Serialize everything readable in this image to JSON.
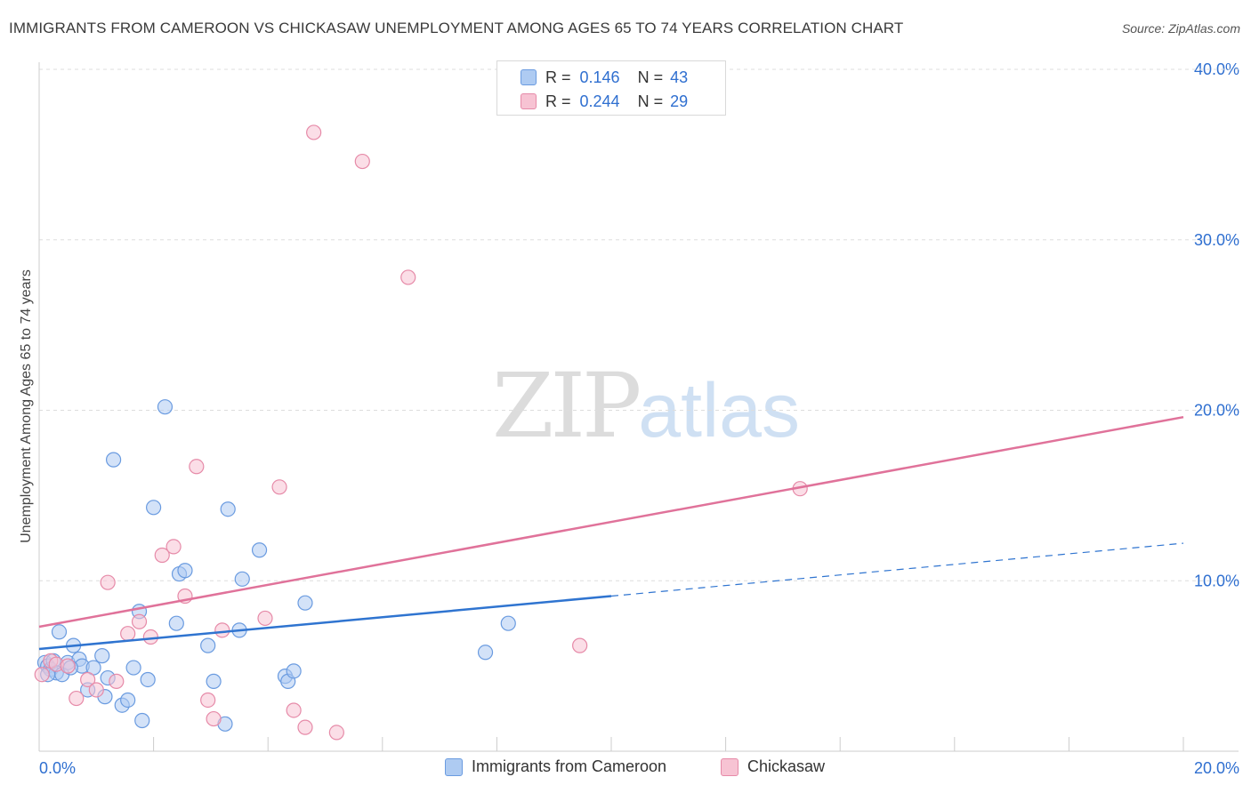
{
  "title": "IMMIGRANTS FROM CAMEROON VS CHICKASAW UNEMPLOYMENT AMONG AGES 65 TO 74 YEARS CORRELATION CHART",
  "source": "Source: ZipAtlas.com",
  "watermark": {
    "zip": "ZIP",
    "atlas": "atlas"
  },
  "legend_top": [
    {
      "r_label": "R =",
      "r_value": "0.146",
      "n_label": "N =",
      "n_value": "43"
    },
    {
      "r_label": "R =",
      "r_value": "0.244",
      "n_label": "N =",
      "n_value": "29"
    }
  ],
  "legend_bottom": [
    "Immigrants from Cameroon",
    "Chickasaw"
  ],
  "colors": {
    "blue_fill": "#aecbf2",
    "blue_stroke": "#6a9be0",
    "blue_line": "#2f74d0",
    "pink_fill": "#f7c3d3",
    "pink_stroke": "#e68aa8",
    "pink_line": "#e0729a",
    "axis_text": "#2f6fd0",
    "grid": "#dddddd"
  },
  "chart_data": {
    "type": "scatter",
    "xlabel": "",
    "ylabel": "Unemployment Among Ages 65 to 74 years",
    "xlim": [
      0,
      20
    ],
    "ylim": [
      0,
      40
    ],
    "x_tick_labels": [
      "0.0%",
      "20.0%"
    ],
    "y_ticks": [
      10,
      20,
      30,
      40
    ],
    "y_tick_labels": [
      "10.0%",
      "20.0%",
      "30.0%",
      "40.0%"
    ],
    "series": [
      {
        "name": "Immigrants from Cameroon",
        "R": 0.146,
        "N": 43,
        "trend": {
          "x0": 0,
          "y0": 6.0,
          "x1": 20,
          "y1": 12.2,
          "solid_until_x": 10
        },
        "points": [
          [
            0.1,
            5.2
          ],
          [
            0.15,
            5.0
          ],
          [
            0.2,
            4.8
          ],
          [
            0.25,
            5.3
          ],
          [
            0.3,
            4.6
          ],
          [
            0.35,
            7.0
          ],
          [
            0.4,
            4.5
          ],
          [
            0.5,
            5.2
          ],
          [
            0.6,
            6.2
          ],
          [
            0.7,
            5.4
          ],
          [
            0.75,
            5.0
          ],
          [
            0.85,
            3.6
          ],
          [
            0.95,
            4.9
          ],
          [
            1.1,
            5.6
          ],
          [
            1.15,
            3.2
          ],
          [
            1.2,
            4.3
          ],
          [
            1.3,
            17.1
          ],
          [
            1.45,
            2.7
          ],
          [
            1.55,
            3.0
          ],
          [
            1.65,
            4.9
          ],
          [
            1.75,
            8.2
          ],
          [
            1.8,
            1.8
          ],
          [
            1.9,
            4.2
          ],
          [
            2.0,
            14.3
          ],
          [
            2.2,
            20.2
          ],
          [
            2.4,
            7.5
          ],
          [
            2.45,
            10.4
          ],
          [
            2.55,
            10.6
          ],
          [
            2.95,
            6.2
          ],
          [
            3.05,
            4.1
          ],
          [
            3.25,
            1.6
          ],
          [
            3.3,
            14.2
          ],
          [
            3.5,
            7.1
          ],
          [
            3.55,
            10.1
          ],
          [
            3.85,
            11.8
          ],
          [
            4.3,
            4.4
          ],
          [
            4.35,
            4.1
          ],
          [
            4.45,
            4.7
          ],
          [
            4.65,
            8.7
          ],
          [
            7.8,
            5.8
          ],
          [
            8.2,
            7.5
          ],
          [
            0.55,
            4.9
          ],
          [
            0.15,
            4.5
          ]
        ]
      },
      {
        "name": "Chickasaw",
        "R": 0.244,
        "N": 29,
        "trend": {
          "x0": 0,
          "y0": 7.3,
          "x1": 20,
          "y1": 19.6
        },
        "points": [
          [
            0.05,
            4.5
          ],
          [
            0.2,
            5.3
          ],
          [
            0.3,
            5.1
          ],
          [
            0.5,
            5.0
          ],
          [
            0.65,
            3.1
          ],
          [
            0.85,
            4.2
          ],
          [
            1.0,
            3.6
          ],
          [
            1.2,
            9.9
          ],
          [
            1.35,
            4.1
          ],
          [
            1.55,
            6.9
          ],
          [
            1.75,
            7.6
          ],
          [
            1.95,
            6.7
          ],
          [
            2.15,
            11.5
          ],
          [
            2.35,
            12.0
          ],
          [
            2.55,
            9.1
          ],
          [
            2.75,
            16.7
          ],
          [
            2.95,
            3.0
          ],
          [
            3.05,
            1.9
          ],
          [
            3.2,
            7.1
          ],
          [
            3.95,
            7.8
          ],
          [
            4.2,
            15.5
          ],
          [
            4.45,
            2.4
          ],
          [
            4.65,
            1.4
          ],
          [
            4.8,
            36.3
          ],
          [
            5.2,
            1.1
          ],
          [
            5.65,
            34.6
          ],
          [
            6.45,
            27.8
          ],
          [
            9.45,
            6.2
          ],
          [
            13.3,
            15.4
          ]
        ]
      }
    ]
  }
}
